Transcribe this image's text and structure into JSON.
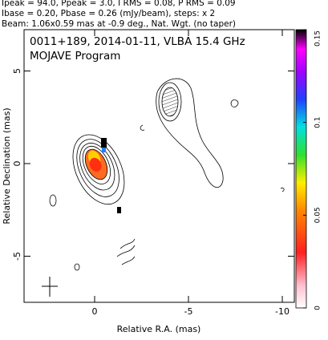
{
  "chart_data": {
    "type": "contour",
    "header_lines": [
      "Ipeak = 94.0, Ppeak = 3.0, I RMS = 0.08, P RMS = 0.09",
      "Ibase = 0.20, Pbase = 0.26 (mJy/beam), steps: x 2",
      "Beam: 1.06x0.59 mas at -0.9 deg., Nat. Wgt. (no taper)"
    ],
    "title": "0011+189, 2014-01-11, VLBA 15.4 GHz",
    "subtitle": "MOJAVE Program",
    "xlabel": "Relative R.A. (mas)",
    "ylabel": "Relative Declination (mas)",
    "xlim": [
      3.76,
      -10.64
    ],
    "xticks": [
      0,
      -5,
      -10
    ],
    "ylim": [
      -7.49,
      7.23
    ],
    "yticks": [
      -5,
      0,
      5
    ],
    "colorbar_lim": [
      0,
      0.15
    ],
    "colorbar_ticks": [
      0,
      0.05,
      0.1,
      0.15
    ]
  }
}
